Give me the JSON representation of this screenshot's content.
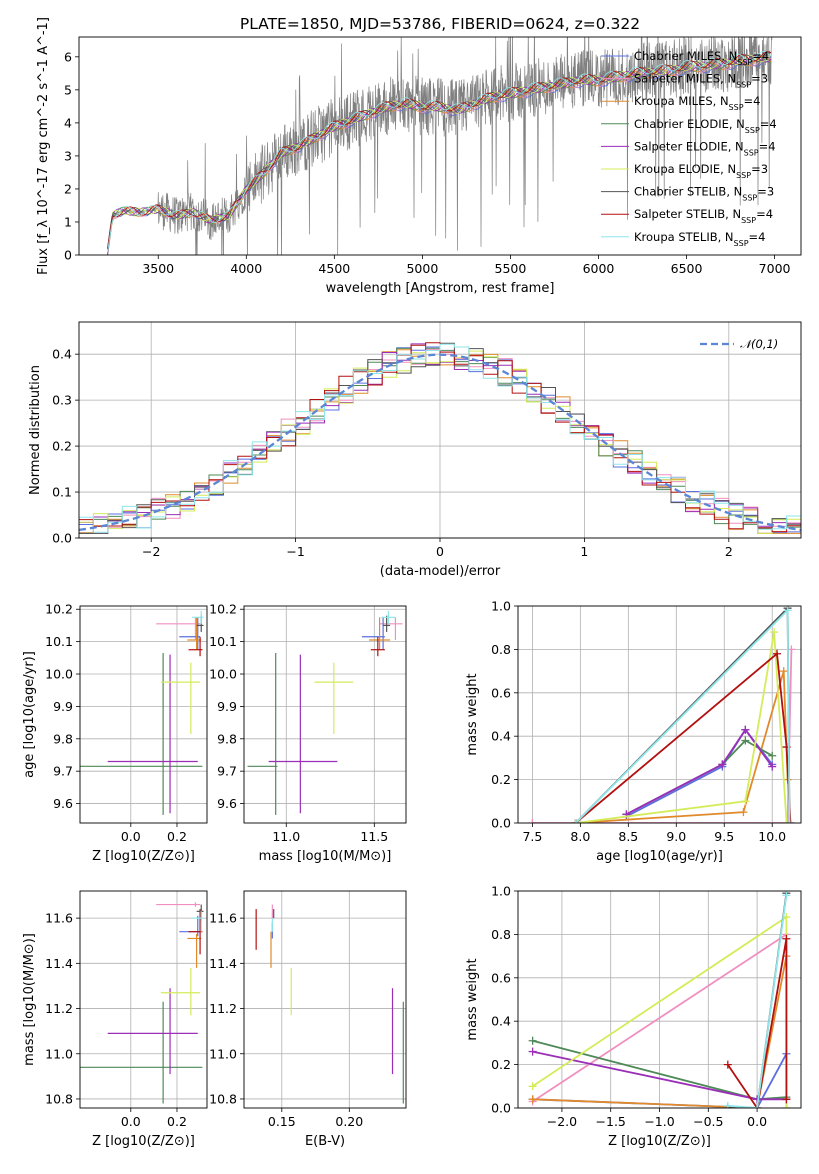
{
  "title": "PLATE=1850, MJD=53786, FIBERID=0624, z=0.322",
  "colors": {
    "Chabrier MILES": "#5b6fe0",
    "Salpeter MILES": "#f08fc0",
    "Kroupa MILES": "#e08a2c",
    "Chabrier ELODIE": "#4e8a57",
    "Salpeter ELODIE": "#9b2fb8",
    "Kroupa ELODIE": "#d4ec5a",
    "Chabrier STELIB": "#555555",
    "Salpeter STELIB": "#b31010",
    "Kroupa STELIB": "#8ee6ea",
    "data": "#808080",
    "gaussian": "#5b86d6"
  },
  "chart_data": [
    {
      "type": "line",
      "id": "spectrum",
      "title": "PLATE=1850, MJD=53786, FIBERID=0624, z=0.322",
      "xlabel": "wavelength [Angstrom, rest frame]",
      "ylabel": "Flux [f_λ 10^-17 erg cm^-2 s^-1 A^-1]",
      "xlim": [
        3050,
        7150
      ],
      "ylim": [
        0,
        6.6
      ],
      "xticks": [
        3500,
        4000,
        4500,
        5000,
        5500,
        6000,
        6500,
        7000
      ],
      "yticks": [
        0,
        1,
        2,
        3,
        4,
        5,
        6
      ],
      "legend_loc": "upper right",
      "legend": [
        {
          "label": "Chabrier MILES, N_SSP=4",
          "color": "#5b6fe0"
        },
        {
          "label": "Salpeter MILES, N_SSP=3",
          "color": "#f08fc0"
        },
        {
          "label": "Kroupa MILES, N_SSP=4",
          "color": "#e08a2c"
        },
        {
          "label": "Chabrier ELODIE, N_SSP=4",
          "color": "#4e8a57"
        },
        {
          "label": "Salpeter ELODIE, N_SSP=4",
          "color": "#9b2fb8"
        },
        {
          "label": "Kroupa ELODIE, N_SSP=3",
          "color": "#d4ec5a"
        },
        {
          "label": "Chabrier STELIB, N_SSP=3",
          "color": "#555555"
        },
        {
          "label": "Salpeter STELIB, N_SSP=4",
          "color": "#b31010"
        },
        {
          "label": "Kroupa STELIB, N_SSP=4",
          "color": "#8ee6ea"
        }
      ],
      "continuum_wavelength": [
        3210,
        3240,
        3300,
        3400,
        3500,
        3600,
        3700,
        3800,
        3900,
        4000,
        4100,
        4200,
        4300,
        4400,
        4500,
        4600,
        4700,
        4800,
        4900,
        5000,
        5100,
        5200,
        5300,
        5400,
        5500,
        5600,
        5700,
        5800,
        5900,
        6000,
        6100,
        6200,
        6300,
        6400,
        6500,
        6600,
        6700,
        6800,
        6900,
        6980
      ],
      "continuum_flux": [
        0.0,
        1.2,
        1.35,
        1.3,
        1.4,
        1.2,
        1.3,
        1.05,
        1.2,
        2.0,
        2.5,
        3.1,
        3.3,
        3.6,
        3.9,
        4.1,
        4.3,
        4.5,
        4.6,
        4.5,
        4.5,
        4.4,
        4.6,
        4.8,
        4.9,
        5.0,
        5.1,
        5.2,
        5.3,
        5.3,
        5.4,
        5.5,
        5.55,
        5.6,
        5.7,
        5.75,
        5.8,
        5.9,
        5.95,
        6.0
      ]
    },
    {
      "type": "histogram",
      "id": "residuals",
      "xlabel": "(data-model)/error",
      "ylabel": "Normed distribution",
      "xlim": [
        -2.5,
        2.5
      ],
      "ylim": [
        0,
        0.47
      ],
      "xticks": [
        -2,
        -1,
        0,
        1,
        2
      ],
      "yticks": [
        0.0,
        0.1,
        0.2,
        0.3,
        0.4
      ],
      "grid": true,
      "bin_width": 0.1,
      "reference_curve": {
        "label": "𝒩(0,1)",
        "mean": 0,
        "sigma": 1,
        "style": "dashed"
      },
      "legend_loc": "upper right"
    },
    {
      "type": "scatter",
      "id": "age-vs-metallicity",
      "xlabel": "Z [log10(Z/Z⊙)]",
      "ylabel": "age [log10(age/yr)]",
      "xlim": [
        -0.22,
        0.33
      ],
      "ylim": [
        9.54,
        10.21
      ],
      "xticks": [
        0.0,
        0.2
      ],
      "yticks": [
        9.6,
        9.7,
        9.8,
        9.9,
        10.0,
        10.1,
        10.2
      ],
      "grid": true,
      "points": [
        {
          "model": "Chabrier ELODIE",
          "x": 0.14,
          "xerr": [
            0.37,
            0.17
          ],
          "y": 9.715,
          "yerr": [
            0.15,
            0.35
          ]
        },
        {
          "model": "Salpeter ELODIE",
          "x": 0.17,
          "xerr": [
            0.27,
            0.12
          ],
          "y": 9.73,
          "yerr": [
            0.16,
            0.33
          ]
        },
        {
          "model": "Kroupa ELODIE",
          "x": 0.26,
          "xerr": [
            0.13,
            0.04
          ],
          "y": 9.975,
          "yerr": [
            0.16,
            0.06
          ]
        },
        {
          "model": "Salpeter MILES",
          "x": 0.28,
          "xerr": [
            0.17,
            0.02
          ],
          "y": 10.155,
          "yerr": [
            0.05,
            0.02
          ]
        },
        {
          "model": "Chabrier MILES",
          "x": 0.29,
          "xerr": [
            0.08,
            0.01
          ],
          "y": 10.115,
          "yerr": [
            0.04,
            0.06
          ]
        },
        {
          "model": "Kroupa MILES",
          "x": 0.285,
          "xerr": [
            0.04,
            0.02
          ],
          "y": 10.105,
          "yerr": [
            0.03,
            0.07
          ]
        },
        {
          "model": "Salpeter STELIB",
          "x": 0.3,
          "xerr": [
            0.05,
            0.01
          ],
          "y": 10.075,
          "yerr": [
            0.02,
            0.04
          ]
        },
        {
          "model": "Chabrier STELIB",
          "x": 0.305,
          "xerr": [
            0.02,
            0.01
          ],
          "y": 10.15,
          "yerr": [
            0.02,
            0.03
          ]
        },
        {
          "model": "Kroupa STELIB",
          "x": 0.305,
          "xerr": [
            0.04,
            0.01
          ],
          "y": 10.175,
          "yerr": [
            0.02,
            0.02
          ]
        }
      ]
    },
    {
      "type": "scatter",
      "id": "age-vs-mass",
      "xlabel": "mass [log10(M/M⊙)]",
      "ylabel": "",
      "xlim": [
        10.76,
        11.68
      ],
      "ylim": [
        9.54,
        10.21
      ],
      "xticks": [
        11.0,
        11.5
      ],
      "yticks": [
        9.6,
        9.7,
        9.8,
        9.9,
        10.0,
        10.1,
        10.2
      ],
      "grid": true,
      "points": [
        {
          "model": "Chabrier ELODIE",
          "x": 10.94,
          "xerr": [
            0.16,
            0.01
          ],
          "y": 9.715,
          "yerr": [
            0.15,
            0.35
          ]
        },
        {
          "model": "Salpeter ELODIE",
          "x": 11.08,
          "xerr": [
            0.18,
            0.21
          ],
          "y": 9.73,
          "yerr": [
            0.16,
            0.33
          ]
        },
        {
          "model": "Kroupa ELODIE",
          "x": 11.27,
          "xerr": [
            0.11,
            0.11
          ],
          "y": 9.975,
          "yerr": [
            0.16,
            0.06
          ]
        },
        {
          "model": "Salpeter MILES",
          "x": 11.62,
          "xerr": [
            0.09,
            0.04
          ],
          "y": 10.155,
          "yerr": [
            0.05,
            0.02
          ]
        },
        {
          "model": "Chabrier MILES",
          "x": 11.55,
          "xerr": [
            0.12,
            0.01
          ],
          "y": 10.115,
          "yerr": [
            0.04,
            0.06
          ]
        },
        {
          "model": "Kroupa MILES",
          "x": 11.53,
          "xerr": [
            0.06,
            0.06
          ],
          "y": 10.105,
          "yerr": [
            0.03,
            0.07
          ]
        },
        {
          "model": "Salpeter STELIB",
          "x": 11.52,
          "xerr": [
            0.04,
            0.04
          ],
          "y": 10.075,
          "yerr": [
            0.02,
            0.04
          ]
        },
        {
          "model": "Chabrier STELIB",
          "x": 11.57,
          "xerr": [
            0.02,
            0.02
          ],
          "y": 10.15,
          "yerr": [
            0.02,
            0.03
          ]
        },
        {
          "model": "Kroupa STELIB",
          "x": 11.58,
          "xerr": [
            0.04,
            0.04
          ],
          "y": 10.175,
          "yerr": [
            0.02,
            0.02
          ]
        }
      ]
    },
    {
      "type": "line",
      "id": "weight-vs-age",
      "xlabel": "age [log10(age/yr)]",
      "ylabel": "mass weight",
      "xlim": [
        7.35,
        10.3
      ],
      "ylim": [
        0,
        1
      ],
      "xticks": [
        7.5,
        8.0,
        8.5,
        9.0,
        9.5,
        10.0
      ],
      "yticks": [
        0.0,
        0.2,
        0.4,
        0.6,
        0.8,
        1.0
      ],
      "grid": true,
      "series": [
        {
          "model": "Chabrier MILES",
          "x": [
            8.48,
            9.48,
            9.72,
            10.0
          ],
          "y": [
            0.03,
            0.26,
            0.43,
            0.27
          ]
        },
        {
          "model": "Salpeter MILES",
          "x": [
            7.5,
            10.16,
            10.2
          ],
          "y": [
            0.0,
            0.0,
            0.8
          ]
        },
        {
          "model": "Kroupa MILES",
          "x": [
            7.95,
            9.7,
            10.12,
            10.16
          ],
          "y": [
            0.0,
            0.05,
            0.7,
            0.2
          ]
        },
        {
          "model": "Chabrier ELODIE",
          "x": [
            8.48,
            9.48,
            9.72,
            10.0
          ],
          "y": [
            0.04,
            0.27,
            0.38,
            0.31
          ]
        },
        {
          "model": "Salpeter ELODIE",
          "x": [
            8.48,
            9.48,
            9.72,
            10.0
          ],
          "y": [
            0.04,
            0.27,
            0.43,
            0.26
          ]
        },
        {
          "model": "Kroupa ELODIE",
          "x": [
            7.95,
            9.72,
            10.02,
            10.15
          ],
          "y": [
            0.0,
            0.1,
            0.88,
            0.0
          ]
        },
        {
          "model": "Chabrier STELIB",
          "x": [
            7.95,
            10.16,
            10.18
          ],
          "y": [
            0.0,
            0.99,
            0.0
          ]
        },
        {
          "model": "Salpeter STELIB",
          "x": [
            7.95,
            10.05,
            10.15,
            10.19
          ],
          "y": [
            0.0,
            0.78,
            0.35,
            0.0
          ]
        },
        {
          "model": "Kroupa STELIB",
          "x": [
            7.95,
            10.16,
            10.18
          ],
          "y": [
            0.0,
            0.98,
            0.0
          ]
        }
      ]
    },
    {
      "type": "scatter",
      "id": "mass-vs-metallicity",
      "xlabel": "Z [log10(Z/Z⊙)]",
      "ylabel": "mass [log10(M/M⊙)]",
      "xlim": [
        -0.22,
        0.33
      ],
      "ylim": [
        10.76,
        11.72
      ],
      "xticks": [
        0.0,
        0.2
      ],
      "yticks": [
        10.8,
        11.0,
        11.2,
        11.4,
        11.6
      ],
      "grid": true,
      "points": [
        {
          "model": "Chabrier ELODIE",
          "x": 0.14,
          "xerr": [
            0.37,
            0.17
          ],
          "y": 10.94,
          "yerr": [
            0.16,
            0.29
          ]
        },
        {
          "model": "Salpeter ELODIE",
          "x": 0.17,
          "xerr": [
            0.27,
            0.12
          ],
          "y": 11.09,
          "yerr": [
            0.18,
            0.2
          ]
        },
        {
          "model": "Kroupa ELODIE",
          "x": 0.26,
          "xerr": [
            0.13,
            0.04
          ],
          "y": 11.27,
          "yerr": [
            0.1,
            0.11
          ]
        },
        {
          "model": "Salpeter MILES",
          "x": 0.28,
          "xerr": [
            0.17,
            0.02
          ],
          "y": 11.66,
          "yerr": [
            0.01,
            0.01
          ]
        },
        {
          "model": "Chabrier MILES",
          "x": 0.29,
          "xerr": [
            0.08,
            0.01
          ],
          "y": 11.54,
          "yerr": [
            0.02,
            0.07
          ]
        },
        {
          "model": "Kroupa MILES",
          "x": 0.285,
          "xerr": [
            0.04,
            0.02
          ],
          "y": 11.51,
          "yerr": [
            0.13,
            0.02
          ]
        },
        {
          "model": "Salpeter STELIB",
          "x": 0.3,
          "xerr": [
            0.05,
            0.01
          ],
          "y": 11.54,
          "yerr": [
            0.1,
            0.1
          ]
        },
        {
          "model": "Chabrier STELIB",
          "x": 0.305,
          "xerr": [
            0.02,
            0.01
          ],
          "y": 11.63,
          "yerr": [
            0.04,
            0.03
          ]
        },
        {
          "model": "Kroupa STELIB",
          "x": 0.305,
          "xerr": [
            0.04,
            0.01
          ],
          "y": 11.6,
          "yerr": [
            0.06,
            0.03
          ]
        }
      ]
    },
    {
      "type": "scatter",
      "id": "mass-vs-ebv",
      "xlabel": "E(B-V)",
      "ylabel": "",
      "xlim": [
        0.122,
        0.242
      ],
      "ylim": [
        10.76,
        11.72
      ],
      "xticks": [
        0.15,
        0.2
      ],
      "yticks": [
        10.8,
        11.0,
        11.2,
        11.4,
        11.6
      ],
      "grid": true,
      "points": [
        {
          "model": "Salpeter STELIB",
          "x": 0.131,
          "y": 11.56,
          "yerr": [
            0.1,
            0.08
          ]
        },
        {
          "model": "Kroupa MILES",
          "x": 0.142,
          "y": 11.51,
          "yerr": [
            0.13,
            0.03
          ]
        },
        {
          "model": "Chabrier MILES",
          "x": 0.143,
          "y": 11.55,
          "yerr": [
            0.04,
            0.03
          ]
        },
        {
          "model": "Kroupa STELIB",
          "x": 0.143,
          "y": 11.6,
          "yerr": [
            0.06,
            0.02
          ]
        },
        {
          "model": "Salpeter MILES",
          "x": 0.143,
          "y": 11.62,
          "yerr": [
            0.02,
            0.04
          ]
        },
        {
          "model": "Chabrier STELIB",
          "x": 0.144,
          "y": 11.62,
          "yerr": [
            0.02,
            0.02
          ]
        },
        {
          "model": "Kroupa ELODIE",
          "x": 0.157,
          "y": 11.27,
          "yerr": [
            0.1,
            0.11
          ]
        },
        {
          "model": "Salpeter ELODIE",
          "x": 0.232,
          "y": 11.09,
          "yerr": [
            0.18,
            0.2
          ]
        },
        {
          "model": "Chabrier ELODIE",
          "x": 0.24,
          "y": 10.94,
          "yerr": [
            0.16,
            0.29
          ]
        }
      ]
    },
    {
      "type": "line",
      "id": "weight-vs-metallicity",
      "xlabel": "Z [log10(Z/Z⊙)]",
      "ylabel": "mass weight",
      "xlim": [
        -2.45,
        0.45
      ],
      "ylim": [
        0,
        1
      ],
      "xticks": [
        -2.0,
        -1.5,
        -1.0,
        -0.5,
        0.0
      ],
      "yticks": [
        0.0,
        0.2,
        0.4,
        0.6,
        0.8,
        1.0
      ],
      "grid": true,
      "series": [
        {
          "model": "Chabrier MILES",
          "x": [
            -2.3,
            0.0,
            0.3
          ],
          "y": [
            0.04,
            0.0,
            0.25
          ]
        },
        {
          "model": "Salpeter MILES",
          "x": [
            -2.3,
            0.3,
            0.3
          ],
          "y": [
            0.03,
            0.8,
            0.0
          ]
        },
        {
          "model": "Kroupa MILES",
          "x": [
            -2.3,
            0.0,
            0.3
          ],
          "y": [
            0.04,
            0.0,
            0.7
          ]
        },
        {
          "model": "Chabrier ELODIE",
          "x": [
            -2.3,
            0.0,
            0.3
          ],
          "y": [
            0.31,
            0.04,
            0.05
          ]
        },
        {
          "model": "Salpeter ELODIE",
          "x": [
            -2.3,
            0.0,
            0.3
          ],
          "y": [
            0.26,
            0.04,
            0.04
          ]
        },
        {
          "model": "Kroupa ELODIE",
          "x": [
            -2.3,
            0.3,
            0.3
          ],
          "y": [
            0.1,
            0.88,
            0.0
          ]
        },
        {
          "model": "Chabrier STELIB",
          "x": [
            -0.3,
            0.0,
            0.3
          ],
          "y": [
            0.0,
            0.0,
            0.99
          ]
        },
        {
          "model": "Salpeter STELIB",
          "x": [
            -0.3,
            0.0,
            0.3,
            0.3
          ],
          "y": [
            0.2,
            0.0,
            0.78,
            0.04
          ]
        },
        {
          "model": "Kroupa STELIB",
          "x": [
            -0.3,
            0.0,
            0.3
          ],
          "y": [
            0.01,
            0.0,
            0.98
          ]
        }
      ]
    }
  ]
}
